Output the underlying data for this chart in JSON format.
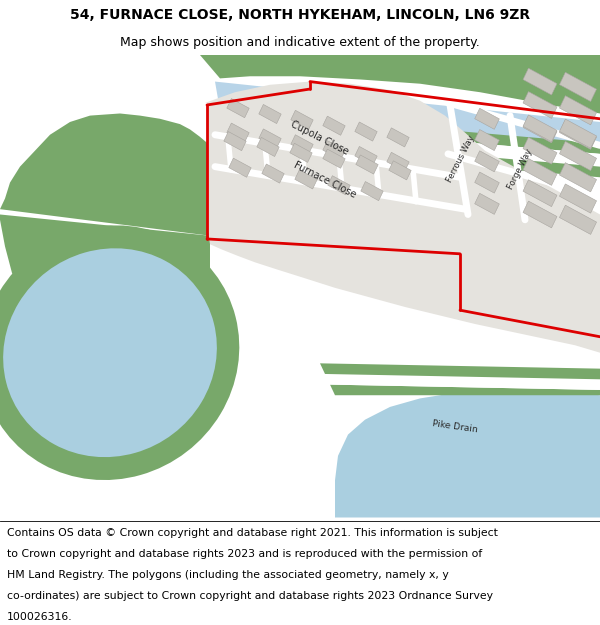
{
  "title_line1": "54, FURNACE CLOSE, NORTH HYKEHAM, LINCOLN, LN6 9ZR",
  "title_line2": "Map shows position and indicative extent of the property.",
  "footer_lines": [
    "Contains OS data © Crown copyright and database right 2021. This information is subject",
    "to Crown copyright and database rights 2023 and is reproduced with the permission of",
    "HM Land Registry. The polygons (including the associated geometry, namely x, y",
    "co-ordinates) are subject to Crown copyright and database rights 2023 Ordnance Survey",
    "100026316."
  ],
  "bg_color": "#ffffff",
  "water_color": "#aacfe0",
  "green_color": "#78a86a",
  "estate_color": "#e5e3de",
  "road_color": "#ffffff",
  "building_fill": "#c8c5bf",
  "building_edge": "#a8a5a0",
  "red_color": "#dd0000",
  "canal_color": "#b8d4e8",
  "title_fontsize": 10,
  "subtitle_fontsize": 9,
  "footer_fontsize": 7.8,
  "label_fontsize": 7,
  "small_label_fontsize": 6
}
